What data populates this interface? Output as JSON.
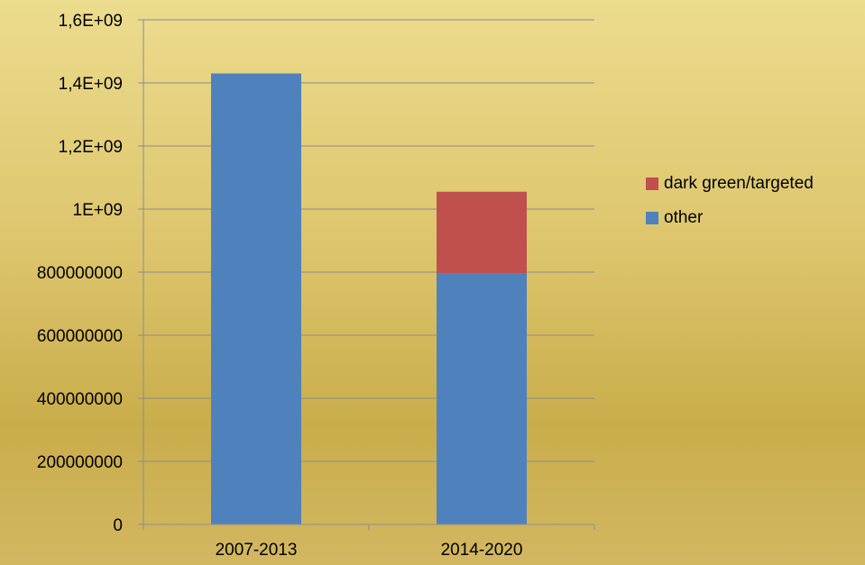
{
  "chart_data": {
    "type": "bar",
    "stacked": true,
    "categories": [
      "2007-2013",
      "2014-2020"
    ],
    "series": [
      {
        "name": "other",
        "values": [
          1430000000,
          795000000
        ],
        "color": "#4f81bd"
      },
      {
        "name": "dark green/targeted",
        "values": [
          0,
          260000000
        ],
        "color": "#c0504d"
      }
    ],
    "ylim": [
      0,
      1600000000
    ],
    "yticks": [
      0,
      200000000,
      400000000,
      600000000,
      800000000,
      1000000000,
      1200000000,
      1400000000,
      1600000000
    ],
    "ytick_labels": [
      "0",
      "200000000",
      "400000000",
      "600000000",
      "800000000",
      "1E+09",
      "1,2E+09",
      "1,4E+09",
      "1,6E+09"
    ],
    "grid": true,
    "legend_position": "right",
    "legend": [
      {
        "label": "dark green/targeted",
        "color": "#c0504d"
      },
      {
        "label": "other",
        "color": "#4f81bd"
      }
    ]
  }
}
